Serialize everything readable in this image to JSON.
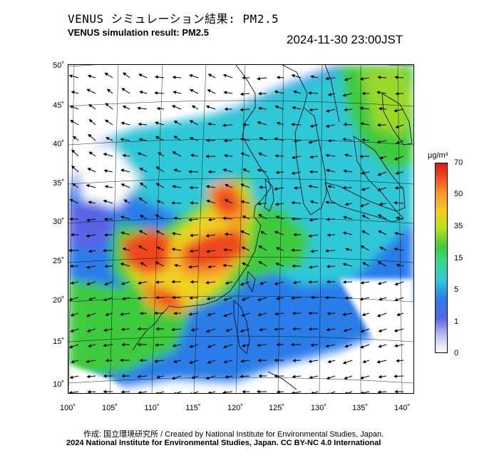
{
  "header": {
    "title_jp": "VENUS シミュレーション結果: PM2.5",
    "title_en": "VENUS simulation result: PM2.5",
    "timestamp": "2024-11-30 23:00JST"
  },
  "map": {
    "lat_ticks": [
      "50˚",
      "45˚",
      "40˚",
      "35˚",
      "30˚",
      "25˚",
      "20˚",
      "15˚",
      "10˚"
    ],
    "lon_ticks": [
      "100˚",
      "105˚",
      "110˚",
      "115˚",
      "120˚",
      "125˚",
      "130˚",
      "135˚",
      "140˚"
    ],
    "extent": {
      "lon": [
        100,
        142
      ],
      "lat": [
        9,
        51
      ]
    }
  },
  "legend": {
    "unit": "μg/m³",
    "labels": [
      "70",
      "50",
      "35",
      "15",
      "5",
      "1",
      "0"
    ],
    "colors": {
      "max": "#d81a12",
      "high": "#f59a28",
      "mid": "#3ecb3e",
      "low": "#2fc8d8",
      "lower": "#2a7be8",
      "min": "#ffffff"
    }
  },
  "footer": {
    "credit": "作成: 国立環境研究所 / Created by National Institute for Environmental Studies, Japan.",
    "copyright": "2024 National Institute for Environmental Studies, Japan. CC BY-NC 4.0 International"
  }
}
